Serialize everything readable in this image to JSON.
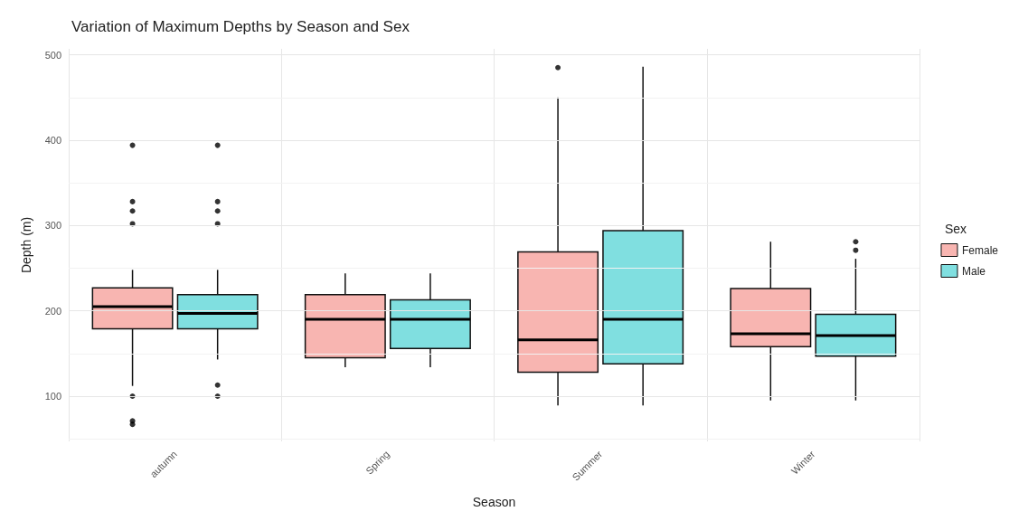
{
  "chart_data": {
    "type": "box",
    "title": "Variation of Maximum Depths by Season and Sex",
    "xlabel": "Season",
    "ylabel": "Depth (m)",
    "legend_title": "Sex",
    "categories": [
      "autumn",
      "Spring",
      "Summer",
      "Winter"
    ],
    "series": [
      {
        "name": "Female",
        "color": "#f8b5b1",
        "boxes": [
          {
            "low": 112,
            "q1": 179,
            "median": 205,
            "q3": 227,
            "high": 248,
            "outliers": [
              394,
              328,
              317,
              302,
              100,
              71,
              67
            ]
          },
          {
            "low": 134,
            "q1": 145,
            "median": 190,
            "q3": 219,
            "high": 244
          },
          {
            "low": 89,
            "q1": 128,
            "median": 166,
            "q3": 269,
            "high": 450,
            "outliers": [
              485
            ]
          },
          {
            "low": 95,
            "q1": 158,
            "median": 173,
            "q3": 226,
            "high": 281
          }
        ]
      },
      {
        "name": "Male",
        "color": "#80dfe0",
        "boxes": [
          {
            "low": 143,
            "q1": 179,
            "median": 197,
            "q3": 219,
            "high": 248,
            "outliers": [
              394,
              328,
              317,
              302,
              113,
              100
            ]
          },
          {
            "low": 134,
            "q1": 156,
            "median": 190,
            "q3": 213,
            "high": 244
          },
          {
            "low": 89,
            "q1": 138,
            "median": 190,
            "q3": 294,
            "high": 486
          },
          {
            "low": 95,
            "q1": 147,
            "median": 171,
            "q3": 196,
            "high": 261,
            "outliers": [
              281,
              271
            ]
          }
        ]
      }
    ],
    "ylim": [
      47,
      507
    ],
    "yticks": [
      100,
      200,
      300,
      400,
      500
    ],
    "grid": true,
    "legend": "right"
  }
}
